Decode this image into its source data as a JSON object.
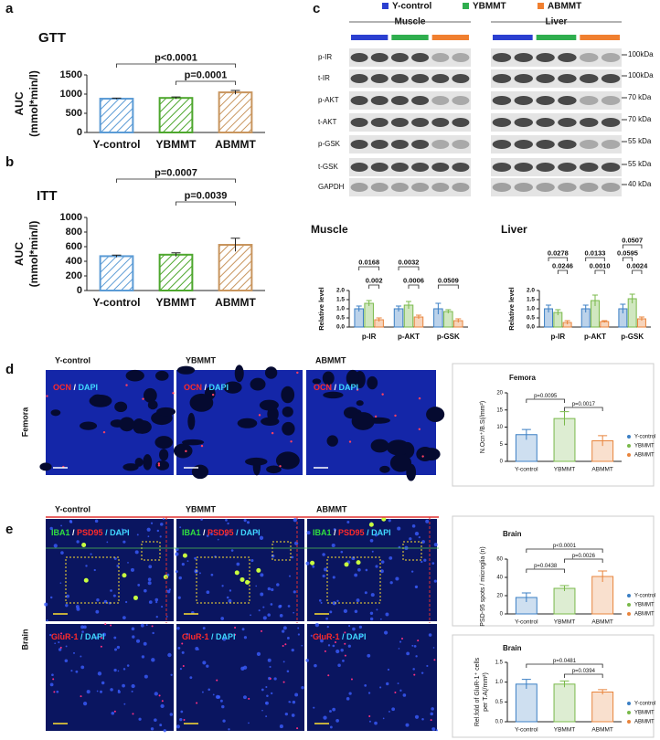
{
  "figure": {
    "panel_letters": [
      "a",
      "b",
      "c",
      "d",
      "e"
    ]
  },
  "legend_top": [
    {
      "name": "Y-control",
      "color": "#2b3fd0"
    },
    {
      "name": "YBMMT",
      "color": "#2fae4e"
    },
    {
      "name": "ABMMT",
      "color": "#f07f2f"
    }
  ],
  "blot": {
    "groups": [
      "Muscle",
      "Liver"
    ],
    "rows": [
      "p-IR",
      "t-IR",
      "p-AKT",
      "t-AKT",
      "p-GSK",
      "t-GSK",
      "GAPDH"
    ],
    "markers": [
      "100kDa",
      "100kDa",
      "70 kDa",
      "70 kDa",
      "55 kDa",
      "55 kDa",
      "40 kDa"
    ]
  },
  "panel_d": {
    "columns": [
      "Y-control",
      "YBMMT",
      "ABMMT"
    ],
    "side_label": "Femora",
    "stain": [
      {
        "text": "OCN",
        "color": "#ff2a2a"
      },
      {
        "text": " / ",
        "color": "#ffffff"
      },
      {
        "text": "DAPI",
        "color": "#40d8ff"
      }
    ]
  },
  "panel_e": {
    "columns": [
      "Y-control",
      "YBMMT",
      "ABMMT"
    ],
    "side_label": "Brain",
    "stain_top": [
      {
        "text": "IBA1",
        "color": "#30e040"
      },
      {
        "text": " / ",
        "color": "#ffffff"
      },
      {
        "text": "PSD95",
        "color": "#ff2a2a"
      },
      {
        "text": " / DAPI",
        "color": "#40d8ff"
      }
    ],
    "stain_bottom": [
      {
        "text": "GluR-1",
        "color": "#ff2a2a"
      },
      {
        "text": " / DAPI",
        "color": "#40d8ff"
      }
    ]
  },
  "chart_data": [
    {
      "type": "bar",
      "title": "GTT",
      "y_label": [
        "AUC",
        "(mmol*min/l)"
      ],
      "categories": [
        "Y-control",
        "YBMMT",
        "ABMMT"
      ],
      "values": [
        880,
        900,
        1045
      ],
      "errors": [
        15,
        25,
        50
      ],
      "colors": [
        "#5b9bd5",
        "#4ea72e",
        "#c8955e"
      ],
      "hatch": true,
      "ylim": [
        0,
        1500
      ],
      "yticks": [
        0,
        500,
        1000,
        1500
      ],
      "annotations": [
        {
          "text": "p<0.0001",
          "pair": [
            "Y-control",
            "ABMMT"
          ]
        },
        {
          "text": "p=0.0001",
          "pair": [
            "YBMMT",
            "ABMMT"
          ]
        }
      ]
    },
    {
      "type": "bar",
      "title": "ITT",
      "y_label": [
        "AUC",
        "(mmol*min/l)"
      ],
      "categories": [
        "Y-control",
        "YBMMT",
        "ABMMT"
      ],
      "values": [
        470,
        490,
        625
      ],
      "errors": [
        15,
        25,
        90
      ],
      "colors": [
        "#5b9bd5",
        "#4ea72e",
        "#c8955e"
      ],
      "hatch": true,
      "ylim": [
        0,
        1000
      ],
      "yticks": [
        0,
        200,
        400,
        600,
        800,
        1000
      ],
      "annotations": [
        {
          "text": "p=0.0007",
          "pair": [
            "Y-control",
            "ABMMT"
          ]
        },
        {
          "text": "p=0.0039",
          "pair": [
            "YBMMT",
            "ABMMT"
          ]
        }
      ]
    },
    {
      "type": "grouped_bar",
      "title": "Muscle",
      "y_label": [
        "Relative level"
      ],
      "categories": [
        "p-IR",
        "p-AKT",
        "p-GSK"
      ],
      "series": [
        {
          "name": "Y-control",
          "color": "#3b7fc4",
          "values": [
            1.0,
            1.0,
            1.0
          ],
          "errors": [
            0.15,
            0.15,
            0.3
          ]
        },
        {
          "name": "YBMMT",
          "color": "#79b94a",
          "values": [
            1.3,
            1.2,
            0.85
          ],
          "errors": [
            0.15,
            0.2,
            0.1
          ]
        },
        {
          "name": "ABMMT",
          "color": "#e8843c",
          "values": [
            0.4,
            0.55,
            0.35
          ],
          "errors": [
            0.1,
            0.1,
            0.1
          ]
        }
      ],
      "ylim": [
        0,
        2
      ],
      "yticks": [
        {
          "value": 0,
          "label": "0.0"
        },
        0.5,
        {
          "value": 1,
          "label": "1.0"
        },
        1.5,
        {
          "value": 2,
          "label": "2.0"
        }
      ],
      "annotations": [
        {
          "text": "0.0168",
          "category": "p-IR",
          "pair": [
            "Y-control",
            "ABMMT"
          ]
        },
        {
          "text": "0.002",
          "category": "p-IR",
          "pair": [
            "YBMMT",
            "ABMMT"
          ]
        },
        {
          "text": "0.0032",
          "category": "p-AKT",
          "pair": [
            "Y-control",
            "ABMMT"
          ]
        },
        {
          "text": "0.0006",
          "category": "p-AKT",
          "pair": [
            "YBMMT",
            "ABMMT"
          ]
        },
        {
          "text": "0.0509",
          "category": "p-GSK",
          "pair": [
            "Y-control",
            "ABMMT"
          ]
        }
      ]
    },
    {
      "type": "grouped_bar",
      "title": "Liver",
      "y_label": [
        "Relative level"
      ],
      "categories": [
        "p-IR",
        "p-AKT",
        "p-GSK"
      ],
      "series": [
        {
          "name": "Y-control",
          "color": "#3b7fc4",
          "values": [
            1.0,
            1.0,
            1.0
          ],
          "errors": [
            0.2,
            0.2,
            0.25
          ]
        },
        {
          "name": "YBMMT",
          "color": "#79b94a",
          "values": [
            0.8,
            1.45,
            1.55
          ],
          "errors": [
            0.15,
            0.3,
            0.25
          ]
        },
        {
          "name": "ABMMT",
          "color": "#e8843c",
          "values": [
            0.25,
            0.3,
            0.45
          ],
          "errors": [
            0.1,
            0.05,
            0.1
          ]
        }
      ],
      "ylim": [
        0,
        2
      ],
      "yticks": [
        {
          "value": 0,
          "label": "0.0"
        },
        0.5,
        {
          "value": 1,
          "label": "1.0"
        },
        1.5,
        {
          "value": 2,
          "label": "2.0"
        }
      ],
      "annotations": [
        {
          "text": "0.0278",
          "category": "p-IR",
          "pair": [
            "Y-control",
            "ABMMT"
          ]
        },
        {
          "text": "0.0246",
          "category": "p-IR",
          "pair": [
            "YBMMT",
            "ABMMT"
          ]
        },
        {
          "text": "0.0133",
          "category": "p-AKT",
          "pair": [
            "Y-control",
            "ABMMT"
          ]
        },
        {
          "text": "0.0010",
          "category": "p-AKT",
          "pair": [
            "YBMMT",
            "ABMMT"
          ]
        },
        {
          "text": "0.0507",
          "category": "p-GSK",
          "pair": [
            "Y-control",
            "ABMMT"
          ]
        },
        {
          "text": "0.0595",
          "category": "p-GSK",
          "pair": [
            "Y-control",
            "YBMMT"
          ]
        },
        {
          "text": "0.0024",
          "category": "p-GSK",
          "pair": [
            "YBMMT",
            "ABMMT"
          ]
        }
      ]
    },
    {
      "type": "bar",
      "title": "Femora",
      "y_label": [
        "N.Ocn⁺/B.S(/mm²)"
      ],
      "categories": [
        "Y-control",
        "YBMMT",
        "ABMMT"
      ],
      "values": [
        7.8,
        12.5,
        6.0
      ],
      "errors": [
        1.5,
        2,
        1.5
      ],
      "colors": [
        "#3b7fc4",
        "#79b94a",
        "#e8843c"
      ],
      "legend": true,
      "ylim": [
        0,
        20
      ],
      "yticks": [
        0,
        5,
        10,
        15,
        20
      ],
      "annotations": [
        {
          "text": "p=0.0095",
          "pair": [
            "Y-control",
            "YBMMT"
          ]
        },
        {
          "text": "p=0.0017",
          "pair": [
            "YBMMT",
            "ABMMT"
          ]
        }
      ]
    },
    {
      "type": "bar",
      "title": "Brain",
      "y_label": [
        "PSD-95 spots / microglia (n)"
      ],
      "categories": [
        "Y-control",
        "YBMMT",
        "ABMMT"
      ],
      "values": [
        18,
        28,
        41
      ],
      "errors": [
        5,
        3,
        6
      ],
      "colors": [
        "#3b7fc4",
        "#79b94a",
        "#e8843c"
      ],
      "legend": true,
      "ylim": [
        0,
        60
      ],
      "yticks": [
        0,
        20,
        40,
        60
      ],
      "annotations": [
        {
          "text": "p<0.0001",
          "pair": [
            "Y-control",
            "ABMMT"
          ]
        },
        {
          "text": "p=0.0026",
          "pair": [
            "YBMMT",
            "ABMMT"
          ]
        },
        {
          "text": "p=0.0438",
          "pair": [
            "Y-control",
            "YBMMT"
          ]
        }
      ]
    },
    {
      "type": "bar",
      "title": "Brain",
      "y_label": [
        "Rel.fold of GluR-1⁺ cells",
        "per T.A(/mm²)"
      ],
      "categories": [
        "Y-control",
        "YBMMT",
        "ABMMT"
      ],
      "values": [
        0.95,
        0.95,
        0.75
      ],
      "errors": [
        0.12,
        0.08,
        0.06
      ],
      "colors": [
        "#3b7fc4",
        "#79b94a",
        "#e8843c"
      ],
      "legend": true,
      "ylim": [
        0,
        1.5
      ],
      "yticks": [
        {
          "value": 0,
          "label": "0.0"
        },
        0.5,
        {
          "value": 1,
          "label": "1.0"
        },
        1.5
      ],
      "annotations": [
        {
          "text": "p=0.0481",
          "pair": [
            "Y-control",
            "ABMMT"
          ]
        },
        {
          "text": "p=0.0394",
          "pair": [
            "YBMMT",
            "ABMMT"
          ]
        }
      ]
    }
  ]
}
